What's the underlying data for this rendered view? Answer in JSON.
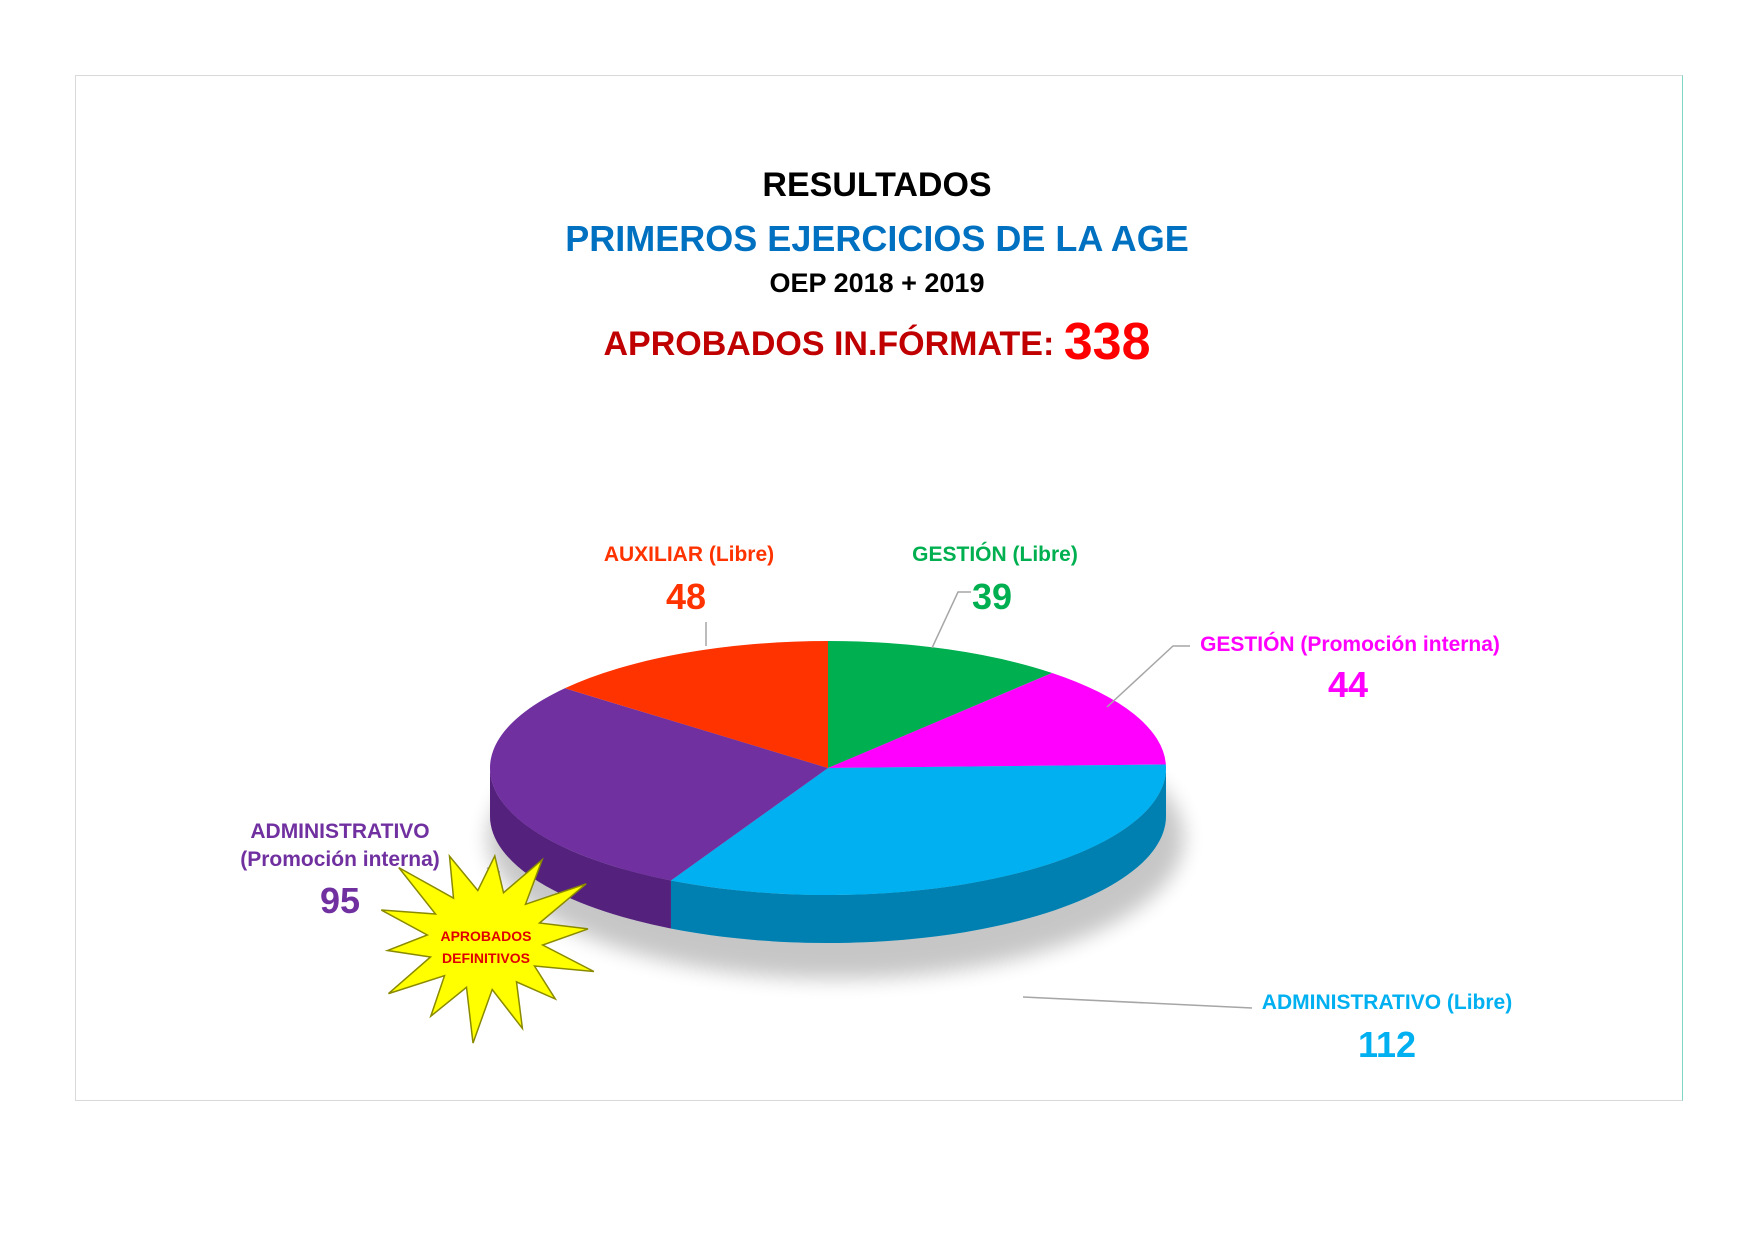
{
  "chart_data": {
    "type": "pie",
    "title": "RESULTADOS",
    "subtitle": "PRIMEROS EJERCICIOS DE LA AGE",
    "period": "OEP 2018 + 2019",
    "total_label": "APROBADOS IN.FÓRMATE:",
    "total_value": "338",
    "slices": [
      {
        "name": "GESTIÓN (Libre)",
        "value": 39,
        "value_label": "39",
        "color": "#00b050",
        "shade": "#007a37"
      },
      {
        "name": "GESTIÓN (Promoción interna)",
        "value": 44,
        "value_label": "44",
        "color": "#ff00ff",
        "shade": "#a600a6"
      },
      {
        "name": "ADMINISTRATIVO (Libre)",
        "value": 112,
        "value_label": "112",
        "color": "#00b0f0",
        "shade": "#005a7e"
      },
      {
        "name_line1": "ADMINISTRATIVO",
        "name_line2": "(Promoción interna)",
        "value": 95,
        "value_label": "95",
        "color": "#7030a0",
        "shade": "#3e1660"
      },
      {
        "name": "AUXILIAR (Libre)",
        "value": 48,
        "value_label": "48",
        "color": "#ff3300",
        "shade": "#a82200"
      }
    ],
    "badge": {
      "line1": "APROBADOS",
      "line2": "DEFINITIVOS",
      "fill": "#ffff00",
      "text_color": "#e00000"
    },
    "colors": {
      "title": "#000000",
      "subtitle": "#0070c0",
      "total_label": "#c00000",
      "total_value": "#ff0000",
      "leader": "#a6a6a6"
    }
  }
}
